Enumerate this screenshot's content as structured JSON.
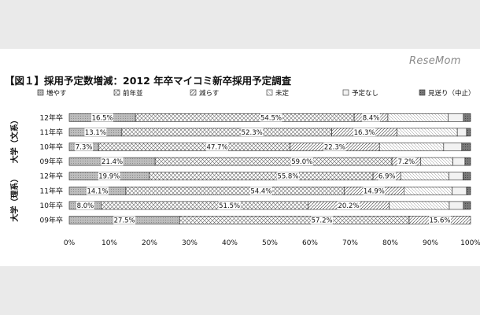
{
  "logo_text": "ReseMom",
  "chart_data": {
    "type": "bar",
    "stacked": "horizontal-100%",
    "title": "【図１】採用予定数増減：2012 年卒マイコミ新卒採用予定調査",
    "series_names": [
      "増やす",
      "前年並",
      "減らす",
      "未定",
      "予定なし",
      "見送り（中止）"
    ],
    "groups": [
      {
        "name": "大学（文系）",
        "rows": [
          {
            "label": "12年卒",
            "values": [
              16.5,
              54.5,
              8.4,
              15.0,
              3.8,
              1.8
            ]
          },
          {
            "label": "11年卒",
            "values": [
              13.1,
              52.3,
              16.3,
              15.0,
              2.3,
              1.0
            ]
          },
          {
            "label": "10年卒",
            "values": [
              7.3,
              47.7,
              22.3,
              16.0,
              4.5,
              2.2
            ]
          },
          {
            "label": "09年卒",
            "values": [
              21.4,
              59.0,
              7.2,
              8.0,
              3.0,
              1.4
            ]
          }
        ]
      },
      {
        "name": "大学（理系）",
        "rows": [
          {
            "label": "12年卒",
            "values": [
              19.9,
              55.8,
              6.9,
              12.0,
              3.5,
              1.9
            ]
          },
          {
            "label": "11年卒",
            "values": [
              14.1,
              54.4,
              14.9,
              12.0,
              3.6,
              1.0
            ]
          },
          {
            "label": "10年卒",
            "values": [
              8.0,
              51.5,
              20.2,
              15.0,
              3.5,
              1.8
            ]
          },
          {
            "label": "09年卒",
            "values": [
              27.5,
              57.2,
              15.6,
              0,
              0,
              0
            ]
          }
        ]
      }
    ],
    "printed_labels": [
      "16.5%",
      "54.5%",
      "8.4%",
      "13.1%",
      "52.3%",
      "16.3%",
      "7.3%",
      "47.7%",
      "22.3%",
      "21.4%",
      "59.0%",
      "7.2%",
      "19.9%",
      "55.8%",
      "6.9%",
      "14.1%",
      "54.4%",
      "14.9%",
      "8.0%",
      "51.5%",
      "20.2%",
      "27.5%",
      "57.2%",
      "15.6%"
    ],
    "x_ticks": [
      "0%",
      "10%",
      "20%",
      "30%",
      "40%",
      "50%",
      "60%",
      "70%",
      "80%",
      "90%",
      "100%"
    ],
    "xlim": [
      0,
      100
    ],
    "grid": false,
    "legend_position": "top"
  }
}
